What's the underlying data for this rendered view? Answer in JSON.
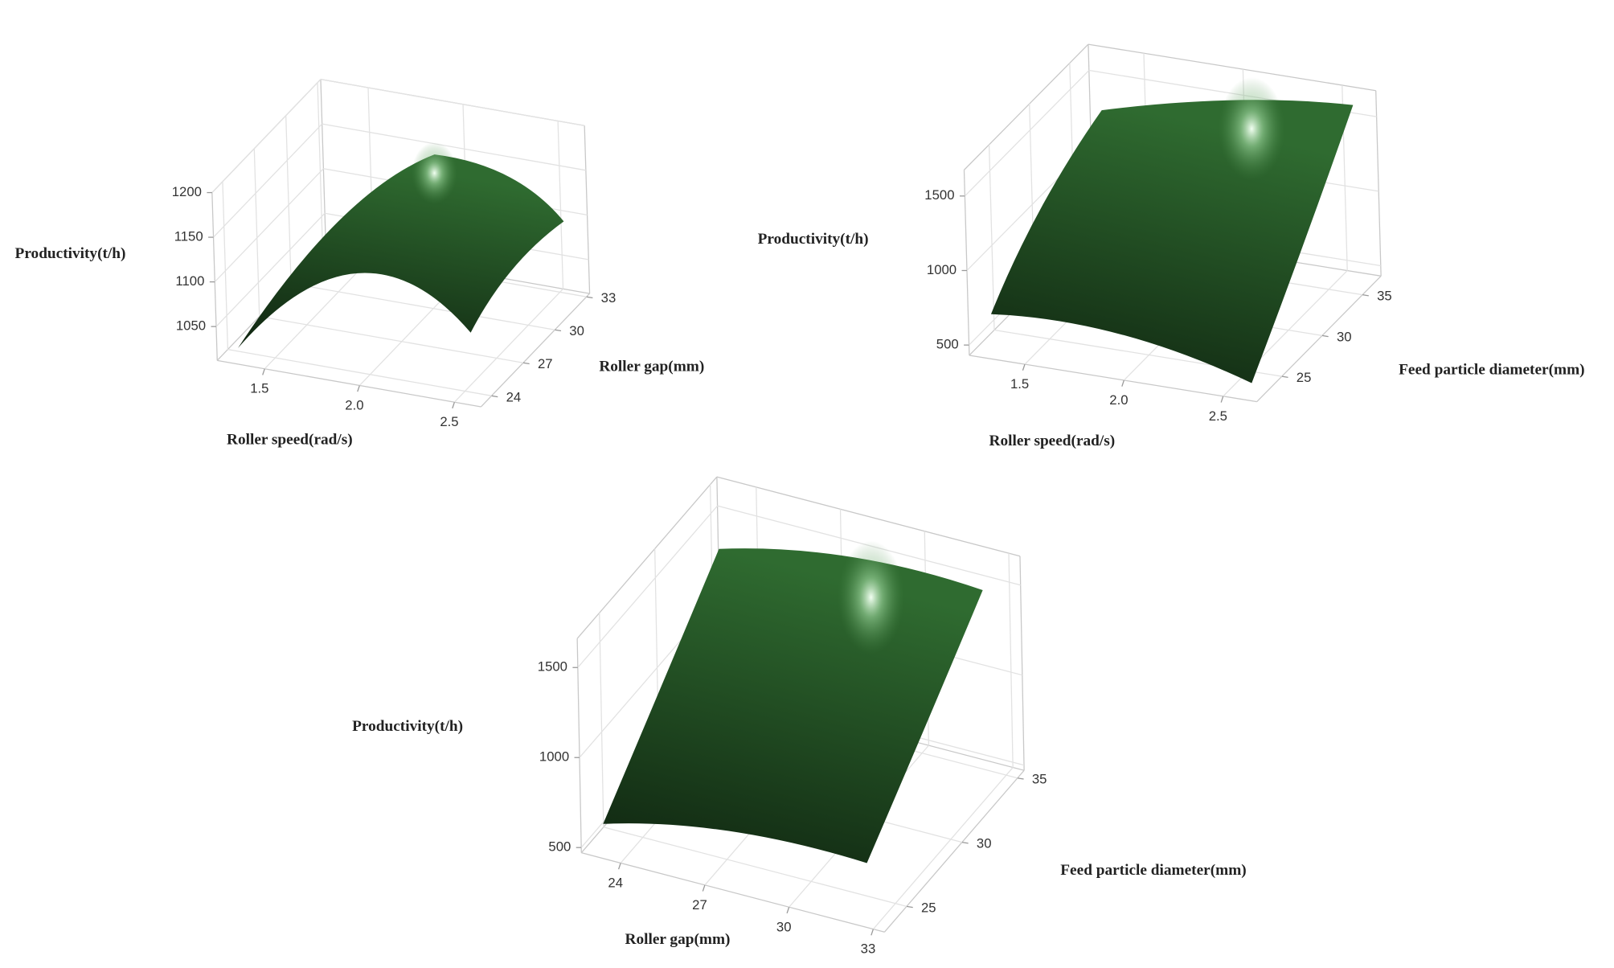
{
  "chart_data": [
    {
      "type": "surface",
      "x_label": "Roller speed(rad/s)",
      "y_label": "Roller gap(mm)",
      "z_label": "Productivity(t/h)",
      "xlim": [
        1.25,
        2.64
      ],
      "xticks": [
        1.5,
        {
          "value": 2,
          "label": "2.0"
        },
        2.5
      ],
      "ylim": [
        23,
        33.3
      ],
      "yticks": [
        24,
        27,
        30,
        33
      ],
      "zlim": [
        1012,
        1200
      ],
      "zticks": [
        1050,
        1100,
        1150,
        1200
      ],
      "color": "#2f6b30",
      "grid": true
    },
    {
      "type": "surface",
      "x_label": "Roller speed(rad/s)",
      "y_label": "Feed particle diameter(mm)",
      "z_label": "Productivity(t/h)",
      "xlim": [
        1.22,
        2.67
      ],
      "xticks": [
        1.5,
        {
          "value": 2,
          "label": "2.0"
        },
        2.5
      ],
      "ylim": [
        21.9,
        37.3
      ],
      "yticks": [
        25,
        30,
        35
      ],
      "zlim": [
        431,
        1675
      ],
      "zticks": [
        500,
        1000,
        1500
      ],
      "color": "#2f6b30",
      "grid": true
    },
    {
      "type": "surface",
      "x_label": "Roller gap(mm)",
      "y_label": "Feed particle diameter(mm)",
      "z_label": "Productivity(t/h)",
      "xlim": [
        22.6,
        33.4
      ],
      "xticks": [
        24,
        27,
        30,
        33
      ],
      "ylim": [
        23,
        35.6
      ],
      "yticks": [
        25,
        30,
        35
      ],
      "zlim": [
        471,
        1661
      ],
      "zticks": [
        500,
        1000,
        1500
      ],
      "color": "#2f6b30",
      "grid": true
    }
  ]
}
